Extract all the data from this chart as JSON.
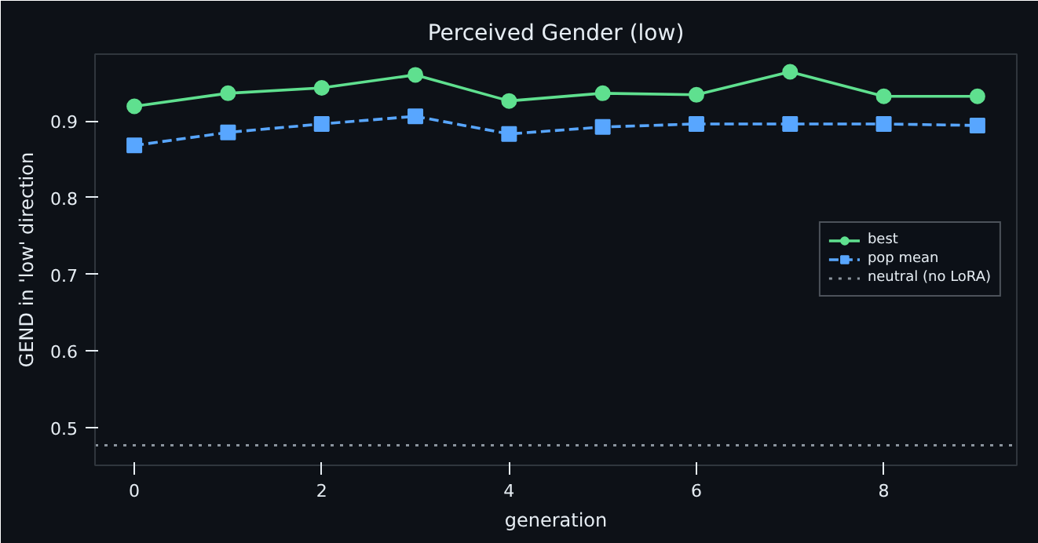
{
  "chart_data": {
    "type": "line",
    "title": "Perceived Gender (low)",
    "xlabel": "generation",
    "ylabel": "GEND in 'low' direction",
    "x": [
      0,
      1,
      2,
      3,
      4,
      5,
      6,
      7,
      8,
      9
    ],
    "series": [
      {
        "name": "best",
        "color": "#5fe08f",
        "values": [
          0.919,
          0.936,
          0.943,
          0.96,
          0.926,
          0.936,
          0.934,
          0.964,
          0.932,
          0.932
        ],
        "marker": "circle",
        "line_style": "solid"
      },
      {
        "name": "pop mean",
        "color": "#58a6ff",
        "values": [
          0.868,
          0.885,
          0.896,
          0.906,
          0.883,
          0.892,
          0.896,
          0.896,
          0.896,
          0.894
        ],
        "marker": "square",
        "line_style": "dashed"
      }
    ],
    "ref_lines": [
      {
        "axis": "y",
        "value": 0.477,
        "label": "neutral (no LoRA)",
        "color": "#8b949e",
        "line_style": "dotted"
      }
    ],
    "xlim": [
      -0.42,
      9.42
    ],
    "ylim": [
      0.451,
      0.987
    ],
    "xticks": [
      0,
      2,
      4,
      6,
      8
    ],
    "yticks": [
      0.5,
      0.6,
      0.7,
      0.8,
      0.9
    ],
    "grid": false,
    "legend": "right"
  }
}
